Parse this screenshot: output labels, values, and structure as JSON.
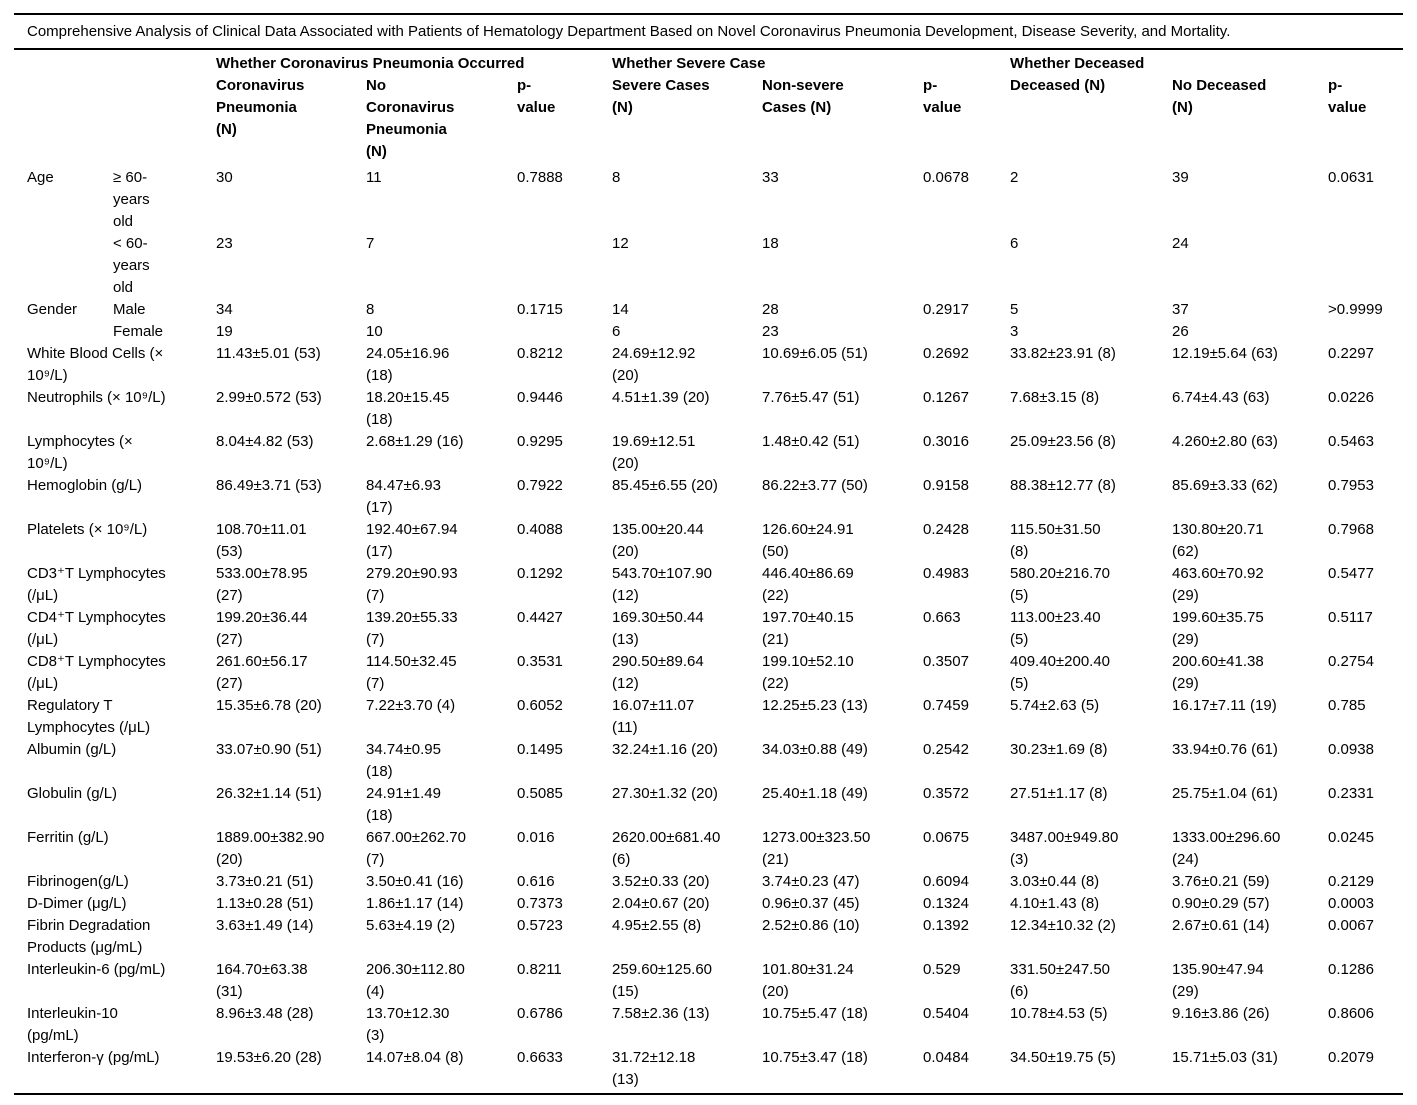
{
  "title": "Comprehensive Analysis of Clinical Data Associated with Patients of Hematology Department Based on Novel Coronavirus Pneumonia Development, Disease Severity, and Mortality.",
  "table": {
    "groups": [
      "Whether Coronavirus Pneumonia Occurred",
      "Whether Severe Case",
      "Whether Deceased"
    ],
    "columns": [
      "Coronavirus\nPneumonia\n(N)",
      "No\nCoronavirus\nPneumonia\n(N)",
      "p-\nvalue",
      "Severe Cases\n(N)",
      "Non-severe\nCases (N)",
      "p-\nvalue",
      "Deceased (N)",
      "No Deceased\n(N)",
      "p-\nvalue"
    ],
    "rows": [
      {
        "category": "Age",
        "sub": "≥ 60-\nyears\nold",
        "values": [
          "30",
          "11",
          "0.7888",
          "8",
          "33",
          "0.0678",
          "2",
          "39",
          "0.0631"
        ]
      },
      {
        "category": "",
        "sub": "< 60-\nyears\nold",
        "values": [
          "23",
          "7",
          "",
          "12",
          "18",
          "",
          "6",
          "24",
          ""
        ]
      },
      {
        "category": "Gender",
        "sub": "Male",
        "values": [
          "34",
          "8",
          "0.1715",
          "14",
          "28",
          "0.2917",
          "5",
          "37",
          ">0.9999"
        ]
      },
      {
        "category": "",
        "sub": "Female",
        "values": [
          "19",
          "10",
          "",
          "6",
          "23",
          "",
          "3",
          "26",
          ""
        ]
      },
      {
        "label": "White Blood Cells (×\n10⁹/L)",
        "values": [
          "11.43±5.01 (53)",
          "24.05±16.96\n(18)",
          "0.8212",
          "24.69±12.92\n(20)",
          "10.69±6.05 (51)",
          "0.2692",
          "33.82±23.91 (8)",
          "12.19±5.64 (63)",
          "0.2297"
        ]
      },
      {
        "label": "Neutrophils (× 10⁹/L)",
        "values": [
          "2.99±0.572 (53)",
          "18.20±15.45\n(18)",
          "0.9446",
          "4.51±1.39 (20)",
          "7.76±5.47 (51)",
          "0.1267",
          "7.68±3.15 (8)",
          "6.74±4.43 (63)",
          "0.0226"
        ]
      },
      {
        "label": "Lymphocytes (×\n10⁹/L)",
        "values": [
          "8.04±4.82 (53)",
          "2.68±1.29 (16)",
          "0.9295",
          "19.69±12.51\n(20)",
          "1.48±0.42 (51)",
          "0.3016",
          "25.09±23.56 (8)",
          "4.260±2.80 (63)",
          "0.5463"
        ]
      },
      {
        "label": "Hemoglobin (g/L)",
        "values": [
          "86.49±3.71 (53)",
          "84.47±6.93\n(17)",
          "0.7922",
          "85.45±6.55 (20)",
          "86.22±3.77 (50)",
          "0.9158",
          "88.38±12.77 (8)",
          "85.69±3.33 (62)",
          "0.7953"
        ]
      },
      {
        "label": "Platelets (× 10⁹/L)",
        "values": [
          "108.70±11.01\n(53)",
          "192.40±67.94\n(17)",
          "0.4088",
          "135.00±20.44\n(20)",
          "126.60±24.91\n(50)",
          "0.2428",
          "115.50±31.50\n(8)",
          "130.80±20.71\n(62)",
          "0.7968"
        ]
      },
      {
        "label": "CD3⁺T Lymphocytes\n(/μL)",
        "values": [
          "533.00±78.95\n(27)",
          "279.20±90.93\n(7)",
          "0.1292",
          "543.70±107.90\n(12)",
          "446.40±86.69\n(22)",
          "0.4983",
          "580.20±216.70\n(5)",
          "463.60±70.92\n(29)",
          "0.5477"
        ]
      },
      {
        "label": "CD4⁺T Lymphocytes\n(/μL)",
        "values": [
          "199.20±36.44\n(27)",
          "139.20±55.33\n(7)",
          "0.4427",
          "169.30±50.44\n(13)",
          "197.70±40.15\n(21)",
          "0.663",
          "113.00±23.40\n(5)",
          "199.60±35.75\n(29)",
          "0.5117"
        ]
      },
      {
        "label": "CD8⁺T Lymphocytes\n(/μL)",
        "values": [
          "261.60±56.17\n(27)",
          "114.50±32.45\n(7)",
          "0.3531",
          "290.50±89.64\n(12)",
          "199.10±52.10\n(22)",
          "0.3507",
          "409.40±200.40\n(5)",
          "200.60±41.38\n(29)",
          "0.2754"
        ]
      },
      {
        "label": "Regulatory T\nLymphocytes (/μL)",
        "values": [
          "15.35±6.78 (20)",
          "7.22±3.70 (4)",
          "0.6052",
          "16.07±11.07\n(11)",
          "12.25±5.23 (13)",
          "0.7459",
          "5.74±2.63 (5)",
          "16.17±7.11 (19)",
          "0.785"
        ]
      },
      {
        "label": "Albumin (g/L)",
        "values": [
          "33.07±0.90 (51)",
          "34.74±0.95\n(18)",
          "0.1495",
          "32.24±1.16 (20)",
          "34.03±0.88 (49)",
          "0.2542",
          "30.23±1.69 (8)",
          "33.94±0.76 (61)",
          "0.0938"
        ]
      },
      {
        "label": "Globulin (g/L)",
        "values": [
          "26.32±1.14 (51)",
          "24.91±1.49\n(18)",
          "0.5085",
          "27.30±1.32 (20)",
          "25.40±1.18 (49)",
          "0.3572",
          "27.51±1.17 (8)",
          "25.75±1.04 (61)",
          "0.2331"
        ]
      },
      {
        "label": "Ferritin (g/L)",
        "values": [
          "1889.00±382.90\n(20)",
          "667.00±262.70\n(7)",
          "0.016",
          "2620.00±681.40\n(6)",
          "1273.00±323.50\n(21)",
          "0.0675",
          "3487.00±949.80\n(3)",
          "1333.00±296.60\n(24)",
          "0.0245"
        ]
      },
      {
        "label": "Fibrinogen(g/L)",
        "values": [
          "3.73±0.21 (51)",
          "3.50±0.41 (16)",
          "0.616",
          "3.52±0.33 (20)",
          "3.74±0.23 (47)",
          "0.6094",
          "3.03±0.44 (8)",
          "3.76±0.21 (59)",
          "0.2129"
        ]
      },
      {
        "label": "D-Dimer (μg/L)",
        "values": [
          "1.13±0.28 (51)",
          "1.86±1.17 (14)",
          "0.7373",
          "2.04±0.67 (20)",
          "0.96±0.37 (45)",
          "0.1324",
          "4.10±1.43 (8)",
          "0.90±0.29 (57)",
          "0.0003"
        ]
      },
      {
        "label": "Fibrin Degradation\nProducts (μg/mL)",
        "values": [
          "3.63±1.49 (14)",
          "5.63±4.19 (2)",
          "0.5723",
          "4.95±2.55 (8)",
          "2.52±0.86 (10)",
          "0.1392",
          "12.34±10.32 (2)",
          "2.67±0.61 (14)",
          "0.0067"
        ]
      },
      {
        "label": "Interleukin-6 (pg/mL)",
        "values": [
          "164.70±63.38\n(31)",
          "206.30±112.80\n(4)",
          "0.8211",
          "259.60±125.60\n(15)",
          "101.80±31.24\n(20)",
          "0.529",
          "331.50±247.50\n(6)",
          "135.90±47.94\n(29)",
          "0.1286"
        ]
      },
      {
        "label": "Interleukin-10\n(pg/mL)",
        "values": [
          "8.96±3.48 (28)",
          "13.70±12.30\n(3)",
          "0.6786",
          "7.58±2.36 (13)",
          "10.75±5.47 (18)",
          "0.5404",
          "10.78±4.53 (5)",
          "9.16±3.86 (26)",
          "0.8606"
        ]
      },
      {
        "label": "Interferon-γ (pg/mL)",
        "values": [
          "19.53±6.20 (28)",
          "14.07±8.04 (8)",
          "0.6633",
          "31.72±12.18\n(13)",
          "10.75±3.47 (18)",
          "0.0484",
          "34.50±19.75 (5)",
          "15.71±5.03 (31)",
          "0.2079"
        ]
      }
    ]
  }
}
